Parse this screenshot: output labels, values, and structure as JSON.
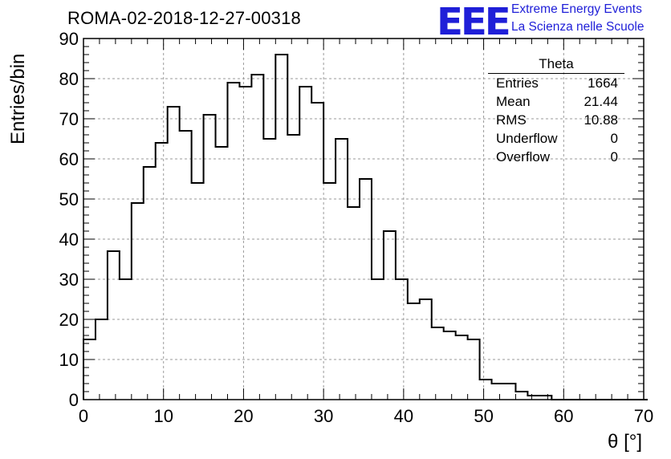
{
  "title": "ROMA-02-2018-12-27-00318",
  "logo": {
    "mark": "EEE",
    "line1": "Extreme Energy Events",
    "line2": "La Scienza nelle Scuole",
    "color": "#1f1fd8"
  },
  "stats": {
    "name": "Theta",
    "rows": [
      {
        "label": "Entries",
        "value": "1664"
      },
      {
        "label": "Mean",
        "value": "21.44"
      },
      {
        "label": "RMS",
        "value": "10.88"
      },
      {
        "label": "Underflow",
        "value": "0"
      },
      {
        "label": "Overflow",
        "value": "0"
      }
    ]
  },
  "chart_data": {
    "type": "bar",
    "style": "step-histogram",
    "xlabel": "θ [°]",
    "ylabel": "Entries/bin",
    "xlim": [
      0,
      70
    ],
    "ylim": [
      0,
      90
    ],
    "xticks": [
      0,
      10,
      20,
      30,
      40,
      50,
      60,
      70
    ],
    "yticks": [
      0,
      10,
      20,
      30,
      40,
      50,
      60,
      70,
      80,
      90
    ],
    "grid": true,
    "bin_width": 1.5,
    "bin_edges_start": 0,
    "values": [
      15,
      20,
      37,
      30,
      49,
      58,
      64,
      73,
      67,
      54,
      71,
      63,
      79,
      78,
      81,
      65,
      86,
      66,
      78,
      74,
      54,
      65,
      48,
      55,
      30,
      42,
      30,
      24,
      25,
      18,
      17,
      16,
      15,
      5,
      4,
      4,
      2,
      1,
      1,
      0,
      0,
      0,
      0,
      0,
      0,
      0,
      0
    ]
  }
}
